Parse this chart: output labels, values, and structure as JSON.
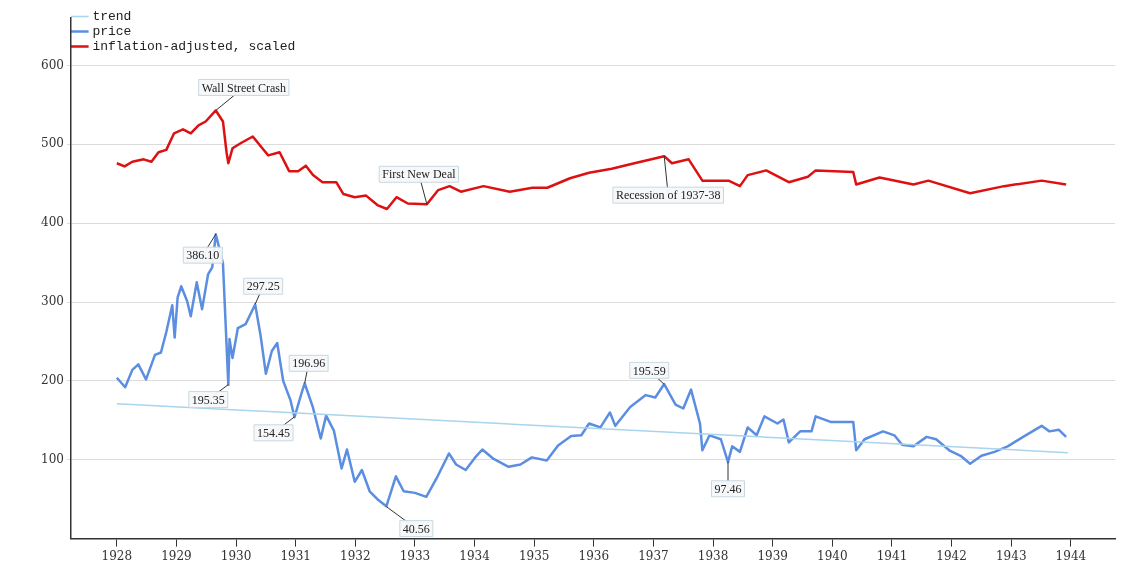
{
  "chart_data": {
    "type": "line",
    "xlim": [
      1927.23,
      1944.74
    ],
    "xticks": [
      1928,
      1929,
      1930,
      1931,
      1932,
      1933,
      1934,
      1935,
      1936,
      1937,
      1938,
      1939,
      1940,
      1941,
      1942,
      1943,
      1944
    ],
    "ylim": [
      0,
      660
    ],
    "yticks": [
      100,
      200,
      300,
      400,
      500,
      600
    ],
    "grid": "y",
    "legend": "top left",
    "marker": "none",
    "line_style": "solid",
    "series": [
      {
        "name": "trend",
        "color": "#a8d4ec",
        "x": [
          1928,
          1943.95
        ],
        "values": [
          171,
          109
        ]
      },
      {
        "name": "price",
        "color": "#5b8ee0",
        "x": [
          1928.0,
          1928.14,
          1928.26,
          1928.36,
          1928.49,
          1928.64,
          1928.74,
          1928.83,
          1928.93,
          1928.97,
          1929.02,
          1929.08,
          1929.18,
          1929.24,
          1929.34,
          1929.43,
          1929.53,
          1929.6,
          1929.66,
          1929.78,
          1929.87,
          1929.89,
          1929.94,
          1930.03,
          1930.16,
          1930.32,
          1930.41,
          1930.5,
          1930.6,
          1930.69,
          1930.79,
          1930.91,
          1930.98,
          1931.1,
          1931.15,
          1931.29,
          1931.42,
          1931.51,
          1931.64,
          1931.77,
          1931.86,
          1931.99,
          1932.11,
          1932.24,
          1932.37,
          1932.52,
          1932.68,
          1932.81,
          1933.0,
          1933.19,
          1933.38,
          1933.57,
          1933.69,
          1933.85,
          1934.01,
          1934.13,
          1934.32,
          1934.57,
          1934.77,
          1934.96,
          1935.21,
          1935.4,
          1935.62,
          1935.79,
          1935.92,
          1936.11,
          1936.27,
          1936.36,
          1936.61,
          1936.87,
          1937.03,
          1937.18,
          1937.37,
          1937.5,
          1937.63,
          1937.78,
          1937.82,
          1937.94,
          1938.13,
          1938.25,
          1938.32,
          1938.45,
          1938.58,
          1938.73,
          1938.86,
          1939.08,
          1939.18,
          1939.27,
          1939.46,
          1939.65,
          1939.72,
          1939.97,
          1940.35,
          1940.4,
          1940.54,
          1940.85,
          1941.04,
          1941.17,
          1941.36,
          1941.58,
          1941.74,
          1941.96,
          1942.15,
          1942.31,
          1942.5,
          1942.72,
          1942.94,
          1943.2,
          1943.51,
          1943.64,
          1943.8,
          1943.92
        ],
        "values": [
          204,
          192,
          214,
          221,
          202,
          233,
          236,
          262,
          296,
          255,
          306,
          320,
          301,
          282,
          325,
          291,
          335,
          344,
          386,
          349,
          195,
          253,
          229,
          267,
          272,
          297,
          258,
          209,
          238,
          248,
          200,
          176,
          154,
          185,
          197,
          166,
          127,
          156,
          137,
          89,
          113,
          72,
          87,
          60,
          50,
          41,
          79,
          60,
          58,
          53,
          79,
          108,
          94,
          87,
          103,
          113,
          101,
          91,
          94,
          103,
          99,
          118,
          130,
          131,
          146,
          141,
          160,
          143,
          167,
          182,
          179,
          196,
          170,
          165,
          189,
          146,
          112,
          131,
          126,
          97,
          117,
          110,
          141,
          131,
          155,
          146,
          151,
          122,
          136,
          136,
          155,
          148,
          148,
          112,
          126,
          136,
          131,
          119,
          117,
          129,
          126,
          112,
          105,
          95,
          105,
          110,
          117,
          129,
          143,
          136,
          138,
          129
        ]
      },
      {
        "name": "inflation-adjusted, scaled",
        "color": "#dd1111",
        "x": [
          1928.0,
          1928.13,
          1928.26,
          1928.45,
          1928.58,
          1928.7,
          1928.83,
          1928.96,
          1929.11,
          1929.24,
          1929.37,
          1929.49,
          1929.66,
          1929.78,
          1929.84,
          1929.87,
          1929.94,
          1930.09,
          1930.28,
          1930.44,
          1930.54,
          1930.73,
          1930.89,
          1931.04,
          1931.17,
          1931.29,
          1931.45,
          1931.68,
          1931.8,
          1931.99,
          1932.18,
          1932.37,
          1932.53,
          1932.69,
          1932.88,
          1933.2,
          1933.39,
          1933.58,
          1933.77,
          1934.15,
          1934.59,
          1934.97,
          1935.22,
          1935.6,
          1935.92,
          1936.3,
          1936.68,
          1937.18,
          1937.31,
          1937.59,
          1937.82,
          1938.26,
          1938.45,
          1938.58,
          1938.89,
          1939.27,
          1939.59,
          1939.72,
          1940.35,
          1940.4,
          1940.79,
          1941.36,
          1941.61,
          1942.31,
          1942.88,
          1943.51,
          1943.92
        ],
        "values": [
          476,
          472,
          478,
          481,
          478,
          490,
          493,
          514,
          519,
          514,
          524,
          529,
          543,
          529,
          490,
          476,
          495,
          502,
          510,
          495,
          486,
          490,
          466,
          466,
          473,
          461,
          452,
          452,
          437,
          433,
          435,
          423,
          418,
          433,
          425,
          424,
          442,
          447,
          440,
          447,
          440,
          445,
          445,
          457,
          464,
          469,
          476,
          485,
          476,
          481,
          454,
          454,
          447,
          461,
          467,
          452,
          459,
          467,
          465,
          449,
          458,
          449,
          454,
          438,
          447,
          454,
          449
        ]
      }
    ],
    "annotations": [
      {
        "text": "Wall Street Crash",
        "x": 1929.66,
        "y": 543
      },
      {
        "text": "First New Deal",
        "x": 1933.2,
        "y": 424
      },
      {
        "text": "Recession of 1937-38",
        "x": 1937.18,
        "y": 485
      },
      {
        "text": "386.10",
        "x": 1929.66,
        "y": 386.1
      },
      {
        "text": "297.25",
        "x": 1930.32,
        "y": 297.25
      },
      {
        "text": "195.35",
        "x": 1929.87,
        "y": 195.35
      },
      {
        "text": "196.96",
        "x": 1931.15,
        "y": 196.96
      },
      {
        "text": "154.45",
        "x": 1930.98,
        "y": 154.45
      },
      {
        "text": "40.56",
        "x": 1932.52,
        "y": 40.56
      },
      {
        "text": "195.59",
        "x": 1937.18,
        "y": 195.59
      },
      {
        "text": "97.46",
        "x": 1938.25,
        "y": 97.46
      }
    ]
  }
}
